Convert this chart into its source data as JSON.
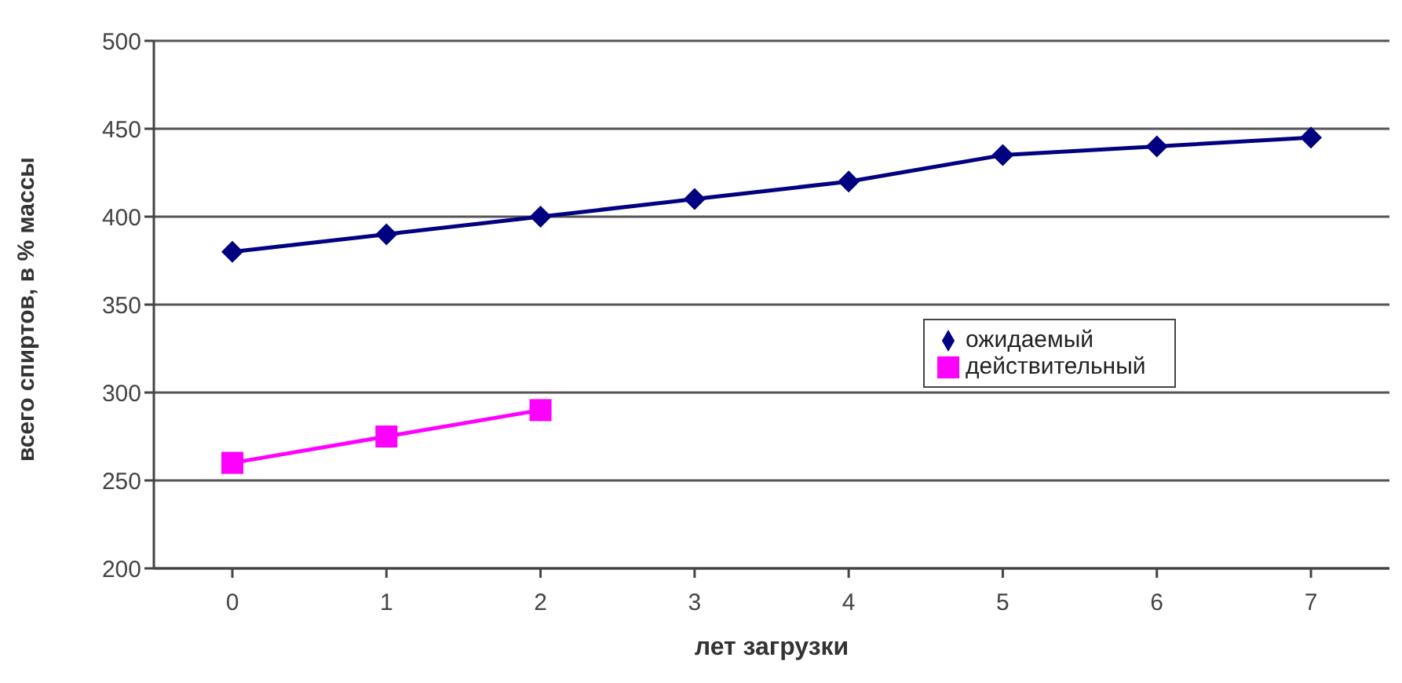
{
  "chart_data": {
    "type": "line",
    "xlabel": "лет загрузки",
    "ylabel": "всего спиртов, в % массы",
    "categories": [
      "0",
      "1",
      "2",
      "3",
      "4",
      "5",
      "6",
      "7"
    ],
    "series": [
      {
        "name": "ожидаемый",
        "color": "#000080",
        "marker": "diamond",
        "values": [
          380,
          390,
          400,
          410,
          420,
          435,
          440,
          445
        ]
      },
      {
        "name": "действительный",
        "color": "#ff00ff",
        "marker": "square",
        "values": [
          260,
          275,
          290,
          null,
          null,
          null,
          null,
          null
        ]
      }
    ],
    "ylim": [
      200,
      500
    ],
    "yticks": [
      200,
      250,
      300,
      350,
      400,
      450,
      500
    ],
    "grid": "y",
    "legend": "right",
    "line_style": "solid"
  }
}
